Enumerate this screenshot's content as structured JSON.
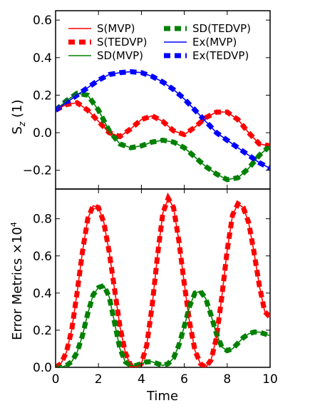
{
  "chart_data": [
    {
      "type": "line",
      "ylabel_main": "S",
      "ylabel_sub": "z",
      "ylabel_rest": " (1)",
      "xlim": [
        0,
        10
      ],
      "ylim": [
        -0.3,
        0.65
      ],
      "yticks": [
        -0.2,
        0.0,
        0.2,
        0.4,
        0.6
      ],
      "ytick_labels": [
        "−0.2",
        "0.0",
        "0.2",
        "0.4",
        "0.6"
      ],
      "grid": false,
      "legend": "top",
      "series": [
        {
          "name": "S(MVP)",
          "color": "#ff0000",
          "style": "solid",
          "x": [
            0,
            0.5,
            1,
            1.5,
            2,
            2.5,
            3,
            3.5,
            4,
            4.5,
            5,
            5.5,
            6,
            6.5,
            7,
            7.5,
            8,
            8.5,
            9,
            9.5,
            10
          ],
          "y": [
            0.12,
            0.15,
            0.16,
            0.12,
            0.06,
            0.0,
            -0.02,
            0.02,
            0.07,
            0.09,
            0.06,
            0.01,
            -0.01,
            0.03,
            0.08,
            0.11,
            0.11,
            0.07,
            0.0,
            -0.06,
            -0.07
          ]
        },
        {
          "name": "S(TEDVP)",
          "color": "#ff0000",
          "style": "dashed",
          "x": [
            0,
            0.5,
            1,
            1.5,
            2,
            2.5,
            3,
            3.5,
            4,
            4.5,
            5,
            5.5,
            6,
            6.5,
            7,
            7.5,
            8,
            8.5,
            9,
            9.5,
            10
          ],
          "y": [
            0.12,
            0.15,
            0.16,
            0.12,
            0.06,
            0.0,
            -0.02,
            0.02,
            0.07,
            0.09,
            0.06,
            0.01,
            -0.01,
            0.03,
            0.08,
            0.11,
            0.11,
            0.07,
            0.0,
            -0.06,
            -0.07
          ]
        },
        {
          "name": "SD(MVP)",
          "color": "#008000",
          "style": "solid",
          "x": [
            0,
            0.5,
            1,
            1.5,
            2,
            2.5,
            3,
            3.5,
            4,
            4.5,
            5,
            5.5,
            6,
            6.5,
            7,
            7.5,
            8,
            8.5,
            9,
            9.5,
            10
          ],
          "y": [
            0.12,
            0.17,
            0.21,
            0.2,
            0.12,
            0.01,
            -0.06,
            -0.08,
            -0.07,
            -0.05,
            -0.04,
            -0.05,
            -0.08,
            -0.13,
            -0.18,
            -0.22,
            -0.25,
            -0.24,
            -0.19,
            -0.12,
            -0.07
          ]
        },
        {
          "name": "SD(TEDVP)",
          "color": "#008000",
          "style": "dashed",
          "x": [
            0,
            0.5,
            1,
            1.5,
            2,
            2.5,
            3,
            3.5,
            4,
            4.5,
            5,
            5.5,
            6,
            6.5,
            7,
            7.5,
            8,
            8.5,
            9,
            9.5,
            10
          ],
          "y": [
            0.12,
            0.17,
            0.21,
            0.2,
            0.12,
            0.01,
            -0.06,
            -0.08,
            -0.07,
            -0.05,
            -0.04,
            -0.05,
            -0.08,
            -0.13,
            -0.18,
            -0.22,
            -0.25,
            -0.24,
            -0.19,
            -0.12,
            -0.07
          ]
        },
        {
          "name": "Ex(MVP)",
          "color": "#0000ff",
          "style": "solid",
          "x": [
            0,
            0.5,
            1,
            1.5,
            2,
            2.5,
            3,
            3.5,
            4,
            4.5,
            5,
            5.5,
            6,
            6.5,
            7,
            7.5,
            8,
            8.5,
            9,
            9.5,
            10
          ],
          "y": [
            0.12,
            0.16,
            0.2,
            0.24,
            0.28,
            0.31,
            0.32,
            0.325,
            0.32,
            0.3,
            0.27,
            0.23,
            0.18,
            0.12,
            0.06,
            0.0,
            -0.04,
            -0.08,
            -0.12,
            -0.16,
            -0.19
          ]
        },
        {
          "name": "Ex(TEDVP)",
          "color": "#0000ff",
          "style": "dashed",
          "x": [
            0,
            0.5,
            1,
            1.5,
            2,
            2.5,
            3,
            3.5,
            4,
            4.5,
            5,
            5.5,
            6,
            6.5,
            7,
            7.5,
            8,
            8.5,
            9,
            9.5,
            10
          ],
          "y": [
            0.12,
            0.16,
            0.2,
            0.24,
            0.28,
            0.31,
            0.32,
            0.325,
            0.32,
            0.3,
            0.27,
            0.23,
            0.18,
            0.12,
            0.06,
            0.0,
            -0.04,
            -0.08,
            -0.12,
            -0.16,
            -0.19
          ]
        }
      ]
    },
    {
      "type": "line",
      "ylabel": "Error Metrics",
      "ylabel_scale": "×10",
      "ylabel_scale_exp": "4",
      "xlabel": "Time",
      "xlim": [
        0,
        10
      ],
      "ylim": [
        0.0,
        0.96
      ],
      "xticks": [
        0,
        2,
        4,
        6,
        8,
        10
      ],
      "xtick_labels": [
        "0",
        "2",
        "4",
        "6",
        "8",
        "10"
      ],
      "yticks": [
        0.0,
        0.2,
        0.4,
        0.6,
        0.8
      ],
      "ytick_labels": [
        "0.0",
        "0.2",
        "0.4",
        "0.6",
        "0.8"
      ],
      "grid": false,
      "series": [
        {
          "color": "#ff0000",
          "style": "solid",
          "x": [
            0,
            0.25,
            0.5,
            0.75,
            1,
            1.25,
            1.5,
            1.75,
            2,
            2.25,
            2.5,
            2.75,
            3,
            3.25,
            3.5,
            3.75,
            4,
            4.25,
            4.5,
            4.75,
            5,
            5.25,
            5.5,
            5.75,
            6,
            6.25,
            6.5,
            6.75,
            7,
            7.25,
            7.5,
            7.75,
            8,
            8.25,
            8.5,
            8.75,
            9,
            9.25,
            9.5,
            9.75,
            10
          ],
          "y": [
            0.0,
            0.02,
            0.08,
            0.2,
            0.4,
            0.62,
            0.8,
            0.87,
            0.86,
            0.78,
            0.62,
            0.42,
            0.22,
            0.08,
            0.01,
            0.0,
            0.02,
            0.12,
            0.33,
            0.6,
            0.83,
            0.91,
            0.86,
            0.68,
            0.45,
            0.24,
            0.09,
            0.02,
            0.0,
            0.04,
            0.16,
            0.38,
            0.63,
            0.82,
            0.88,
            0.86,
            0.78,
            0.62,
            0.44,
            0.3,
            0.27
          ]
        },
        {
          "color": "#ff0000",
          "style": "dashed",
          "x": [
            0,
            0.25,
            0.5,
            0.75,
            1,
            1.25,
            1.5,
            1.75,
            2,
            2.25,
            2.5,
            2.75,
            3,
            3.25,
            3.5,
            3.75,
            4,
            4.25,
            4.5,
            4.75,
            5,
            5.25,
            5.5,
            5.75,
            6,
            6.25,
            6.5,
            6.75,
            7,
            7.25,
            7.5,
            7.75,
            8,
            8.25,
            8.5,
            8.75,
            9,
            9.25,
            9.5,
            9.75,
            10
          ],
          "y": [
            0.0,
            0.02,
            0.08,
            0.2,
            0.4,
            0.62,
            0.8,
            0.87,
            0.86,
            0.78,
            0.62,
            0.42,
            0.22,
            0.08,
            0.01,
            0.0,
            0.02,
            0.12,
            0.33,
            0.6,
            0.83,
            0.91,
            0.86,
            0.68,
            0.45,
            0.24,
            0.09,
            0.02,
            0.0,
            0.04,
            0.16,
            0.38,
            0.63,
            0.82,
            0.88,
            0.86,
            0.78,
            0.62,
            0.44,
            0.3,
            0.27
          ]
        },
        {
          "color": "#008000",
          "style": "solid",
          "x": [
            0,
            0.25,
            0.5,
            0.75,
            1,
            1.25,
            1.5,
            1.75,
            2,
            2.25,
            2.5,
            2.75,
            3,
            3.25,
            3.5,
            3.75,
            4,
            4.25,
            4.5,
            4.75,
            5,
            5.25,
            5.5,
            5.75,
            6,
            6.25,
            6.5,
            6.75,
            7,
            7.25,
            7.5,
            7.75,
            8,
            8.25,
            8.5,
            8.75,
            9,
            9.25,
            9.5,
            9.75,
            10
          ],
          "y": [
            0.0,
            0.0,
            0.01,
            0.03,
            0.08,
            0.17,
            0.29,
            0.39,
            0.43,
            0.44,
            0.38,
            0.24,
            0.1,
            0.03,
            0.01,
            0.01,
            0.02,
            0.03,
            0.03,
            0.02,
            0.01,
            0.02,
            0.05,
            0.12,
            0.22,
            0.33,
            0.4,
            0.41,
            0.37,
            0.28,
            0.18,
            0.11,
            0.09,
            0.1,
            0.13,
            0.16,
            0.18,
            0.19,
            0.19,
            0.18,
            0.17
          ]
        },
        {
          "color": "#008000",
          "style": "dashed",
          "x": [
            0,
            0.25,
            0.5,
            0.75,
            1,
            1.25,
            1.5,
            1.75,
            2,
            2.25,
            2.5,
            2.75,
            3,
            3.25,
            3.5,
            3.75,
            4,
            4.25,
            4.5,
            4.75,
            5,
            5.25,
            5.5,
            5.75,
            6,
            6.25,
            6.5,
            6.75,
            7,
            7.25,
            7.5,
            7.75,
            8,
            8.25,
            8.5,
            8.75,
            9,
            9.25,
            9.5,
            9.75,
            10
          ],
          "y": [
            0.0,
            0.0,
            0.01,
            0.03,
            0.08,
            0.17,
            0.29,
            0.39,
            0.43,
            0.44,
            0.38,
            0.24,
            0.1,
            0.03,
            0.01,
            0.01,
            0.02,
            0.03,
            0.03,
            0.02,
            0.01,
            0.02,
            0.05,
            0.12,
            0.22,
            0.33,
            0.4,
            0.41,
            0.37,
            0.28,
            0.18,
            0.11,
            0.09,
            0.1,
            0.13,
            0.16,
            0.18,
            0.19,
            0.19,
            0.18,
            0.17
          ]
        }
      ]
    }
  ]
}
